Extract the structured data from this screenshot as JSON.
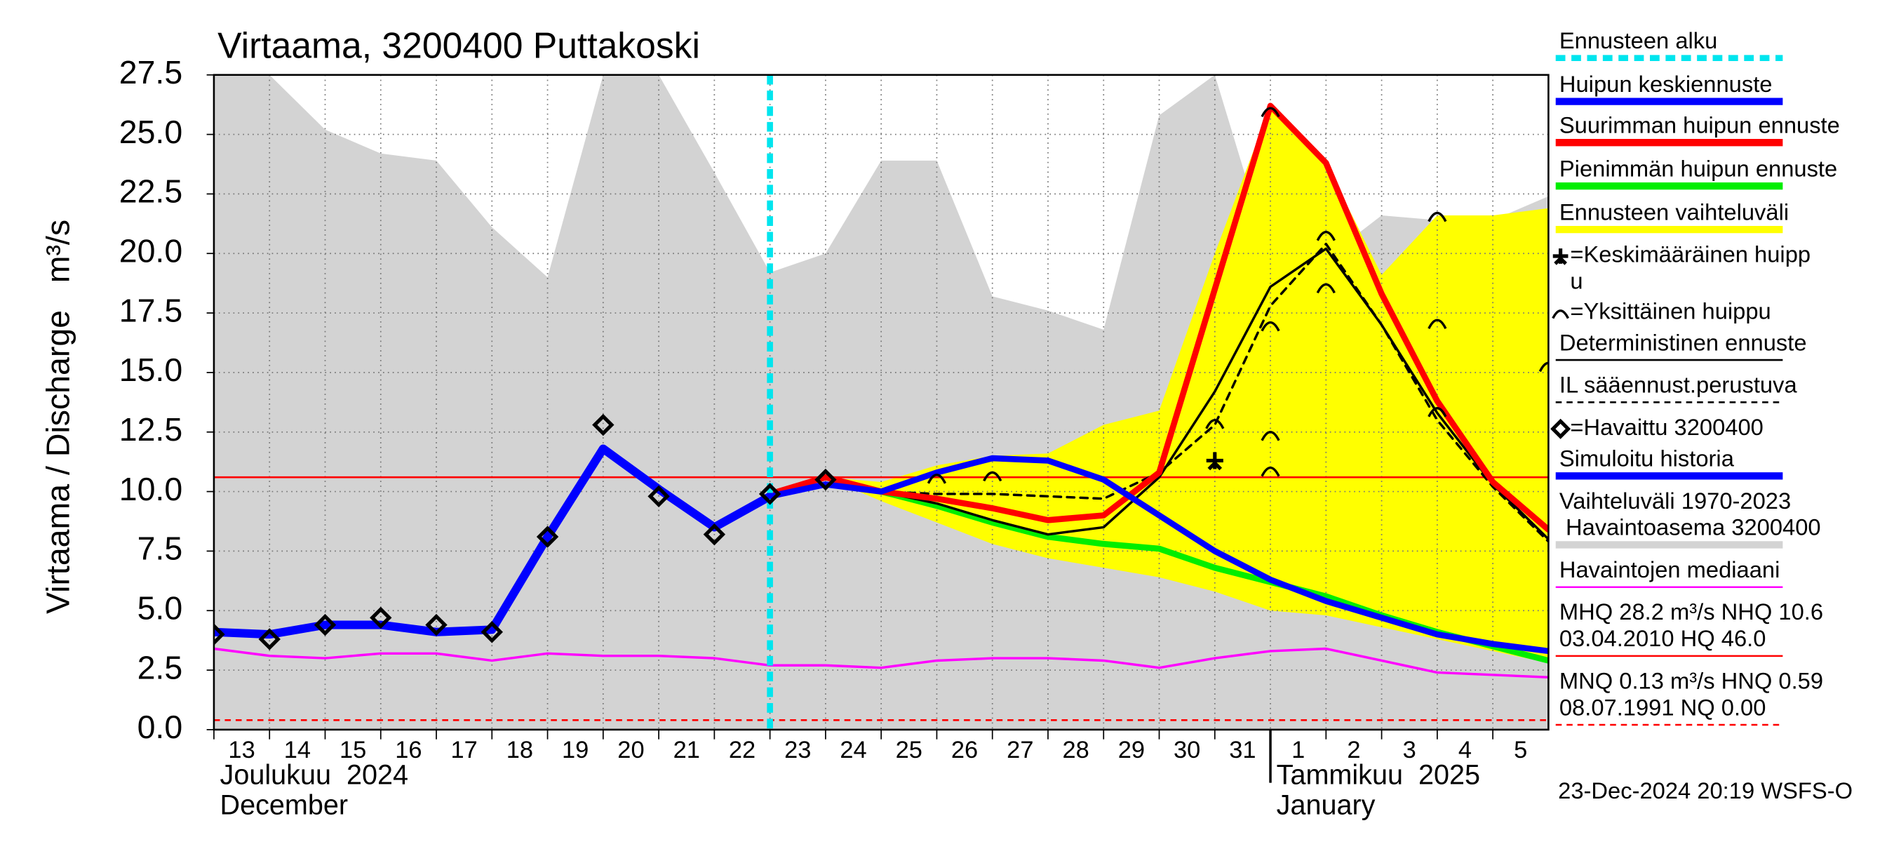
{
  "chart_data": {
    "type": "line",
    "title": "Virtaama, 3200400 Puttakoski",
    "ylabel": "Virtaama / Discharge   m³/s",
    "xlim": [
      0,
      24
    ],
    "ylim": [
      0,
      27.5
    ],
    "yticks": [
      {
        "value": 0,
        "label": "0.0"
      },
      2.5,
      {
        "value": 5,
        "label": "5.0"
      },
      7.5,
      {
        "value": 10,
        "label": "10.0"
      },
      12.5,
      {
        "value": 15,
        "label": "15.0"
      },
      17.5,
      {
        "value": 20,
        "label": "20.0"
      },
      22.5,
      {
        "value": 25,
        "label": "25.0"
      },
      27.5
    ],
    "xticks": [
      {
        "value": 0,
        "label": "13"
      },
      {
        "value": 1,
        "label": "14"
      },
      {
        "value": 2,
        "label": "15"
      },
      {
        "value": 3,
        "label": "16"
      },
      {
        "value": 4,
        "label": "17"
      },
      {
        "value": 5,
        "label": "18"
      },
      {
        "value": 6,
        "label": "19"
      },
      {
        "value": 7,
        "label": "20"
      },
      {
        "value": 8,
        "label": "21"
      },
      {
        "value": 9,
        "label": "22"
      },
      {
        "value": 10,
        "label": "23"
      },
      {
        "value": 11,
        "label": "24"
      },
      {
        "value": 12,
        "label": "25"
      },
      {
        "value": 13,
        "label": "26"
      },
      {
        "value": 14,
        "label": "27"
      },
      {
        "value": 15,
        "label": "28"
      },
      {
        "value": 16,
        "label": "29"
      },
      {
        "value": 17,
        "label": "30"
      },
      {
        "value": 18,
        "label": "31"
      },
      {
        "value": 19,
        "label": "1"
      },
      {
        "value": 20,
        "label": "2"
      },
      {
        "value": 21,
        "label": "3"
      },
      {
        "value": 22,
        "label": "4"
      },
      {
        "value": 23,
        "label": "5"
      }
    ],
    "month_labels": [
      {
        "value": 0,
        "lines": [
          "Joulukuu  2024",
          "December"
        ]
      },
      {
        "value": 19,
        "lines": [
          "Tammikuu  2025",
          "January"
        ]
      }
    ],
    "month_boundary": 19,
    "grid": true,
    "forecast_start": {
      "value": 10,
      "color": "#00e5ee"
    },
    "hlines": [
      {
        "value": 10.6,
        "color": "#ff0000",
        "dashed": false
      },
      {
        "value": 0.4,
        "color": "#ff0000",
        "dashed": true
      }
    ],
    "series": [
      {
        "kind": "area",
        "color": "#d3d3d3",
        "x": [
          0,
          1,
          2,
          3,
          4,
          5,
          6,
          7,
          8,
          9,
          10,
          11,
          12,
          13,
          14,
          15,
          16,
          17,
          18,
          19,
          20,
          21,
          22,
          23,
          24
        ],
        "values": [
          27.5,
          27.5,
          25.2,
          24.2,
          23.9,
          21.1,
          19.0,
          27.5,
          27.5,
          23.4,
          19.2,
          20.0,
          23.9,
          23.9,
          18.2,
          17.6,
          16.8,
          25.8,
          27.5,
          19.8,
          19.8,
          21.6,
          21.4,
          21.4,
          22.4
        ]
      },
      {
        "kind": "band",
        "color": "#ffff00",
        "x": [
          11,
          12,
          13,
          14,
          15,
          16,
          17,
          18,
          19,
          20,
          21,
          22,
          23,
          24
        ],
        "values": [
          10.6,
          10.4,
          11.1,
          11.5,
          11.6,
          12.8,
          13.4,
          20.0,
          26.2,
          23.8,
          19.1,
          21.6,
          21.6,
          21.9
        ],
        "lower": [
          10.6,
          9.6,
          8.7,
          7.8,
          7.2,
          6.8,
          6.4,
          5.8,
          5.0,
          4.8,
          4.3,
          3.8,
          3.3,
          2.8
        ]
      },
      {
        "kind": "line",
        "color": "#ff00ff",
        "width": 2,
        "x": [
          0,
          1,
          2,
          3,
          4,
          5,
          6,
          7,
          8,
          9,
          10,
          11,
          12,
          13,
          14,
          15,
          16,
          17,
          18,
          19,
          20,
          21,
          22,
          23,
          24
        ],
        "values": [
          3.4,
          3.1,
          3.0,
          3.2,
          3.2,
          2.9,
          3.2,
          3.1,
          3.1,
          3.0,
          2.7,
          2.7,
          2.6,
          2.9,
          3.0,
          3.0,
          2.9,
          2.6,
          3.0,
          3.3,
          3.4,
          2.9,
          2.4,
          2.3,
          2.2
        ]
      },
      {
        "kind": "line",
        "color": "#00ee00",
        "width": 5,
        "x": [
          12,
          13,
          14,
          15,
          16,
          17,
          18,
          19,
          20,
          21,
          22,
          23,
          24
        ],
        "values": [
          10.0,
          9.4,
          8.7,
          8.1,
          7.8,
          7.6,
          6.8,
          6.2,
          5.6,
          4.8,
          4.1,
          3.5,
          2.9
        ]
      },
      {
        "kind": "line",
        "color": "#000000",
        "width": 2,
        "x": [
          12,
          13,
          14,
          15,
          16,
          17,
          18,
          19,
          20,
          21,
          22,
          23,
          24
        ],
        "values": [
          10.0,
          9.5,
          8.8,
          8.2,
          8.5,
          10.6,
          14.2,
          18.6,
          20.2,
          17.0,
          13.3,
          10.3,
          8.0
        ]
      },
      {
        "kind": "line",
        "color": "#000000",
        "width": 2,
        "dashed": true,
        "x": [
          12,
          13,
          14,
          15,
          16,
          17,
          18,
          19,
          20,
          21,
          22,
          23,
          24
        ],
        "values": [
          10.0,
          9.9,
          9.9,
          9.8,
          9.7,
          10.8,
          12.8,
          17.8,
          20.4,
          17.0,
          13.0,
          10.2,
          7.9
        ]
      },
      {
        "kind": "line",
        "color": "#ff0000",
        "width": 5,
        "x": [
          10,
          11,
          12,
          13,
          14,
          15,
          16,
          17,
          18,
          19,
          20,
          21,
          22,
          23,
          24
        ],
        "values": [
          9.9,
          10.6,
          10.0,
          9.7,
          9.3,
          8.8,
          9.0,
          10.8,
          18.5,
          26.2,
          23.8,
          18.3,
          13.8,
          10.4,
          8.4
        ]
      },
      {
        "kind": "line",
        "color": "#0000ff",
        "width": 5,
        "x": [
          10,
          11,
          12,
          13,
          14,
          15,
          16,
          17,
          18,
          19,
          20,
          21,
          22,
          23,
          24
        ],
        "values": [
          9.8,
          10.3,
          10.0,
          10.8,
          11.4,
          11.3,
          10.5,
          9.0,
          7.5,
          6.3,
          5.4,
          4.7,
          4.0,
          3.6,
          3.3
        ]
      },
      {
        "kind": "line",
        "color": "#0000ff",
        "width": 7,
        "x": [
          0,
          1,
          2,
          3,
          4,
          5,
          6,
          7,
          8,
          9,
          10
        ],
        "values": [
          4.1,
          4.0,
          4.4,
          4.4,
          4.1,
          4.2,
          8.1,
          11.8,
          10.1,
          8.5,
          9.8
        ]
      },
      {
        "kind": "points",
        "marker": "diamond",
        "color": "#000000",
        "x": [
          0,
          1,
          2,
          3,
          4,
          5,
          6,
          7,
          8,
          9,
          10,
          11
        ],
        "values": [
          4.0,
          3.8,
          4.4,
          4.7,
          4.4,
          4.1,
          8.1,
          12.8,
          9.8,
          8.2,
          9.9,
          10.5
        ]
      },
      {
        "kind": "points",
        "marker": "arc",
        "color": "#000000",
        "x": [
          13,
          14,
          18,
          19,
          19,
          19,
          19,
          20,
          20,
          22,
          22,
          22,
          24
        ],
        "values": [
          10.6,
          10.7,
          12.9,
          26.0,
          17.0,
          12.4,
          10.9,
          20.8,
          18.6,
          21.6,
          17.1,
          13.4,
          15.3
        ]
      },
      {
        "kind": "points",
        "marker": "plus",
        "color": "#000000",
        "x": [
          18
        ],
        "values": [
          11.3
        ]
      }
    ],
    "legend": [
      {
        "lines": [
          "Ennusteen alku"
        ],
        "color": "#00e5ee",
        "style": "thick-dashed"
      },
      {
        "lines": [
          "Huipun keskiennuste"
        ],
        "color": "#0000ff",
        "style": "thick"
      },
      {
        "lines": [
          "Suurimman huipun ennuste"
        ],
        "color": "#ff0000",
        "style": "thick"
      },
      {
        "lines": [
          "Pienimmän huipun ennuste"
        ],
        "color": "#00ee00",
        "style": "thick"
      },
      {
        "lines": [
          "Ennusteen vaihteluväli"
        ],
        "color": "#ffff00",
        "style": "thick"
      },
      {
        "lines": [
          "=Keskimääräinen huipp",
          "u"
        ],
        "color": "#000000",
        "style": "plus"
      },
      {
        "lines": [
          "=Yksittäinen huippu"
        ],
        "color": "#000000",
        "style": "arc"
      },
      {
        "lines": [
          "Deterministinen ennuste"
        ],
        "color": "#000000",
        "style": "thin"
      },
      {
        "lines": [
          "IL sääennust.perustuva"
        ],
        "color": "#000000",
        "style": "dashed"
      },
      {
        "lines": [
          "=Havaittu 3200400"
        ],
        "color": "#000000",
        "style": "diamond"
      },
      {
        "lines": [
          "Simuloitu historia"
        ],
        "color": "#0000ff",
        "style": "thick"
      },
      {
        "lines": [
          "Vaihteluväli 1970-2023",
          " Havaintoasema 3200400"
        ],
        "color": "#d3d3d3",
        "style": "thick"
      },
      {
        "lines": [
          "Havaintojen mediaani"
        ],
        "color": "#ff00ff",
        "style": "thin"
      },
      {
        "lines": [
          "MHQ 28.2 m³/s NHQ 10.6",
          "03.04.2010 HQ 46.0"
        ],
        "color": "#ff0000",
        "style": "thin"
      },
      {
        "lines": [
          "MNQ 0.13 m³/s HNQ 0.59",
          "08.07.1991 NQ 0.00"
        ],
        "color": "#ff0000",
        "style": "dashed"
      }
    ],
    "footer": "23-Dec-2024 20:19 WSFS-O"
  }
}
